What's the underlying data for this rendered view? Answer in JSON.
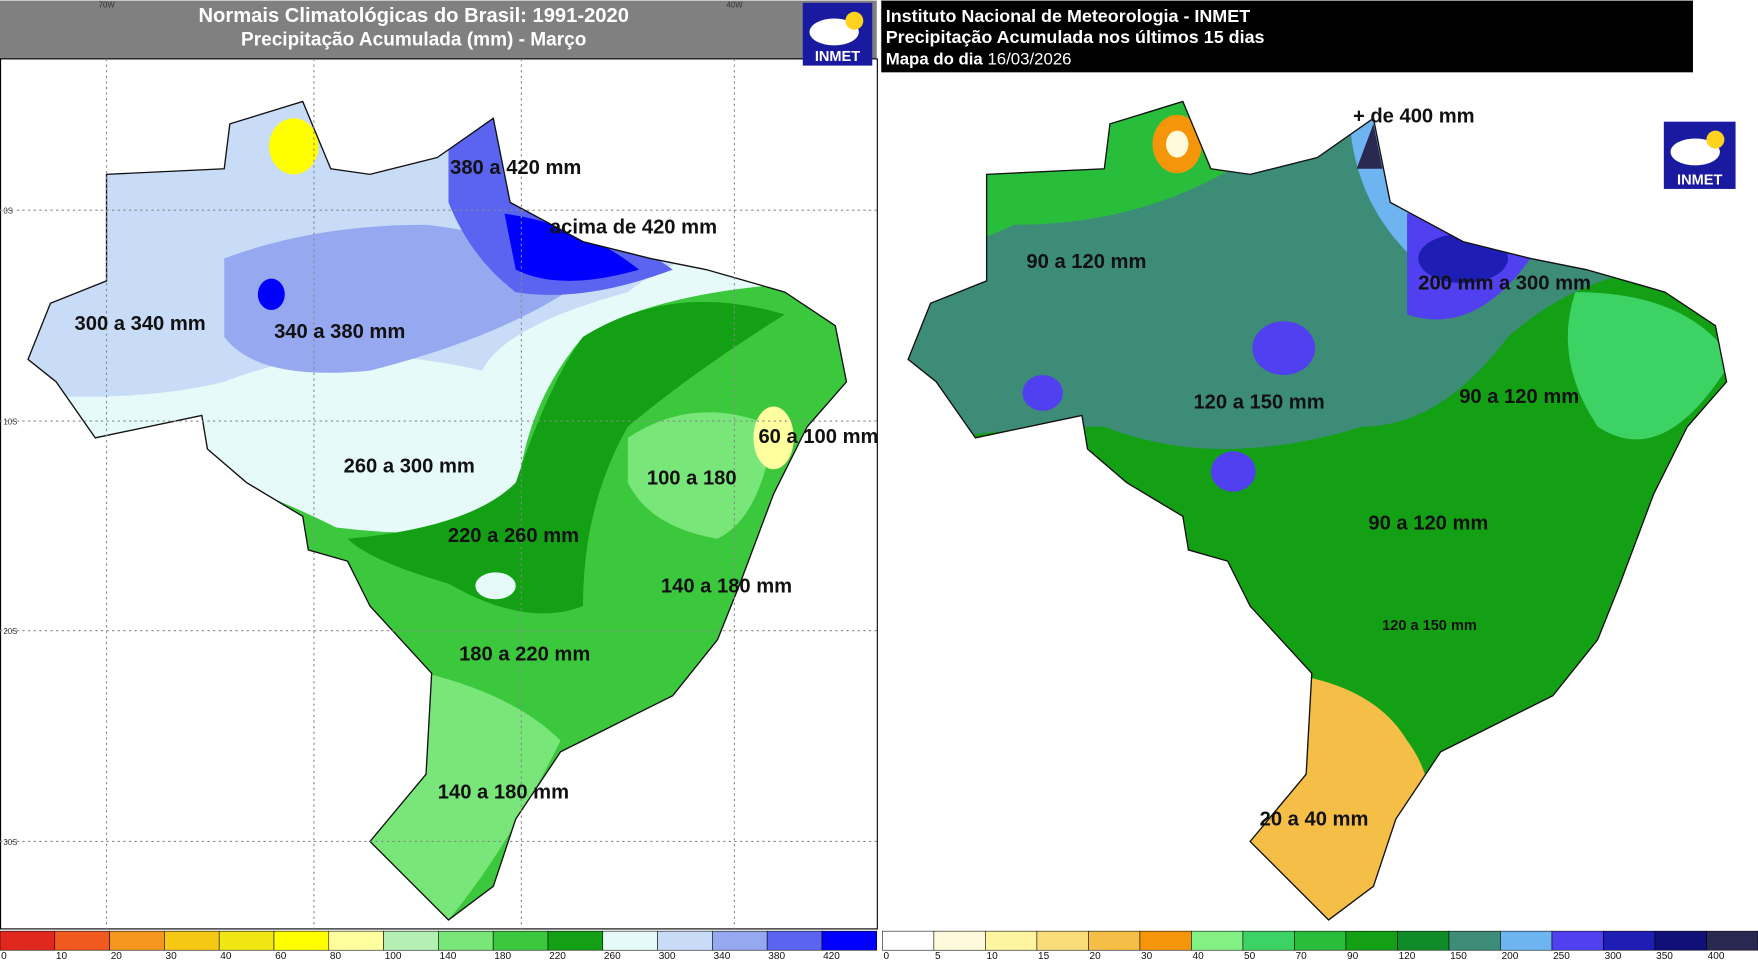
{
  "left": {
    "title": "Normais Climatológicas do Brasil: 1991-2020",
    "subtitle": "Precipitação Acumulada (mm) - Março",
    "logo": "INMET",
    "axis_labels": [
      "70W",
      "40W",
      "0S",
      "10S",
      "20S",
      "30S"
    ],
    "regions": [
      "380 a 420 mm",
      "acima de 420 mm",
      "300 a 340 mm",
      "340 a 380 mm",
      "260 a 300 mm",
      "60 a 100 mm",
      "100 a 180",
      "220 a 260 mm",
      "140 a 180 mm",
      "180 a 220 mm",
      "140 a 180 mm"
    ],
    "legend": {
      "ticks": [
        0,
        10,
        20,
        30,
        40,
        60,
        80,
        100,
        140,
        180,
        220,
        260,
        300,
        340,
        380,
        420
      ],
      "colors": [
        "#e0281e",
        "#f05a1e",
        "#f5961e",
        "#f5c814",
        "#f0e614",
        "#ffff00",
        "#ffffa0",
        "#b4f0b4",
        "#78e678",
        "#3cc83c",
        "#14a014",
        "#e6fafa",
        "#c8dcf8",
        "#96a8f0",
        "#5a64f0",
        "#0000ff"
      ]
    }
  },
  "right": {
    "title": "Instituto Nacional de Meteorologia - INMET",
    "subtitle": "Precipitação Acumulada nos últimos 15 dias",
    "date_label": "Mapa do dia",
    "date": "16/03/2026",
    "logo": "INMET",
    "regions": [
      "+ de 400 mm",
      "90 a 120 mm",
      "200 mm a 300 mm",
      "120 a 150 mm",
      "90 a 120 mm",
      "90 a 120 mm",
      "120 a 150 mm",
      "20 a 40 mm"
    ],
    "legend": {
      "ticks": [
        0,
        5,
        10,
        15,
        20,
        30,
        40,
        50,
        70,
        90,
        120,
        150,
        200,
        250,
        300,
        350,
        400
      ],
      "colors": [
        "#ffffff",
        "#fffadc",
        "#fff5a0",
        "#fadc78",
        "#f5be46",
        "#f5960a",
        "#82f082",
        "#3cd264",
        "#28be3c",
        "#14a014",
        "#0f8c28",
        "#3c8c78",
        "#6eb4f0",
        "#5040f0",
        "#1e1eb4",
        "#101078",
        "#282850"
      ]
    }
  }
}
